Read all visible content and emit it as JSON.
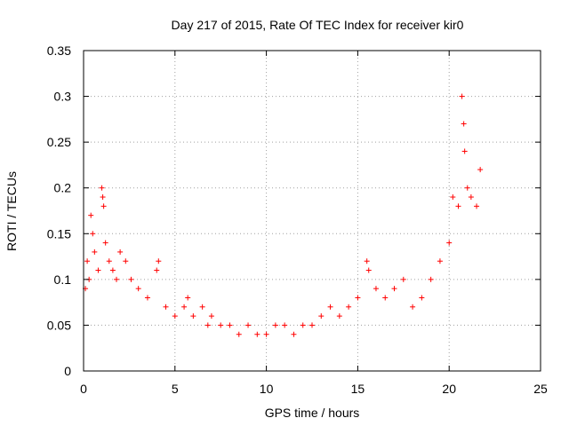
{
  "chart_data": {
    "type": "scatter",
    "title": "Day 217 of 2015, Rate Of TEC Index for receiver kir0",
    "xlabel": "GPS time / hours",
    "ylabel": "ROTI / TECUs",
    "xlim": [
      0,
      25
    ],
    "ylim": [
      0,
      0.35
    ],
    "xticks": [
      "0",
      "5",
      "10",
      "15",
      "20",
      "25"
    ],
    "yticks": [
      "0",
      "0.05",
      "0.1",
      "0.15",
      "0.2",
      "0.25",
      "0.3",
      "0.35"
    ],
    "grid": true,
    "legend": "none",
    "marker": "+",
    "color": "#ff0000",
    "series": [
      {
        "x": [
          0.1,
          0.2,
          0.3,
          0.4,
          0.5,
          0.6,
          0.8,
          1.0,
          1.05,
          1.1,
          1.2,
          1.4,
          1.6,
          1.8,
          2.0,
          2.3,
          2.6,
          3.0,
          3.5,
          4.0,
          4.1,
          4.5,
          5.0,
          5.5,
          5.7,
          6.0,
          6.5,
          6.8,
          7.0,
          7.5,
          8.0,
          8.5,
          9.0,
          9.5,
          10.0,
          10.5,
          11.0,
          11.5,
          12.0,
          12.5,
          13.0,
          13.5,
          14.0,
          14.5,
          15.0,
          15.5,
          15.6,
          16.0,
          16.5,
          17.0,
          17.5,
          18.0,
          18.5,
          19.0,
          19.5,
          20.0,
          20.2,
          20.5,
          20.7,
          20.8,
          20.85,
          21.0,
          21.2,
          21.5,
          21.7
        ],
        "y": [
          0.09,
          0.12,
          0.1,
          0.17,
          0.15,
          0.13,
          0.11,
          0.2,
          0.19,
          0.18,
          0.14,
          0.12,
          0.11,
          0.1,
          0.13,
          0.12,
          0.1,
          0.09,
          0.08,
          0.11,
          0.12,
          0.07,
          0.06,
          0.07,
          0.08,
          0.06,
          0.07,
          0.05,
          0.06,
          0.05,
          0.05,
          0.04,
          0.05,
          0.04,
          0.04,
          0.05,
          0.05,
          0.04,
          0.05,
          0.05,
          0.06,
          0.07,
          0.06,
          0.07,
          0.08,
          0.12,
          0.11,
          0.09,
          0.08,
          0.09,
          0.1,
          0.07,
          0.08,
          0.1,
          0.12,
          0.14,
          0.19,
          0.18,
          0.3,
          0.27,
          0.24,
          0.2,
          0.19,
          0.18,
          0.22
        ]
      }
    ]
  }
}
